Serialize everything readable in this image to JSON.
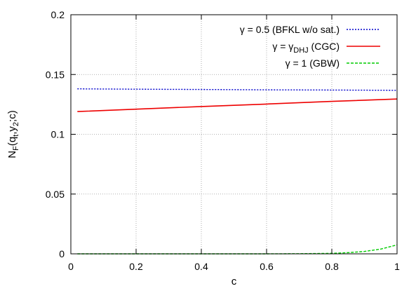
{
  "chart_data": {
    "type": "line",
    "title": "",
    "xlabel": "c",
    "ylabel": {
      "base": "N",
      "sub": "F",
      "rest_open": "(q",
      "sub2": "t",
      "rest_mid": ",y",
      "sub3": "2",
      "rest_close": ";c)"
    },
    "xlim": [
      0,
      1
    ],
    "ylim": [
      0,
      0.2
    ],
    "xticks": [
      {
        "value": 0,
        "label": "0"
      },
      {
        "value": 0.2,
        "label": "0.2"
      },
      {
        "value": 0.4,
        "label": "0.4"
      },
      {
        "value": 0.6,
        "label": "0.6"
      },
      {
        "value": 0.8,
        "label": "0.8"
      },
      {
        "value": 1,
        "label": "1"
      }
    ],
    "yticks": [
      {
        "value": 0,
        "label": "0"
      },
      {
        "value": 0.05,
        "label": "0.05"
      },
      {
        "value": 0.1,
        "label": "0.1"
      },
      {
        "value": 0.15,
        "label": "0.15"
      },
      {
        "value": 0.2,
        "label": "0.2"
      }
    ],
    "grid": true,
    "legend_position": "top-right",
    "series": [
      {
        "name": "γ = 0.5 (BFKL w/o sat.)",
        "legend": {
          "pre": "γ = 0.5 (BFKL w/o sat.)",
          "sub": "",
          "post": ""
        },
        "color": "#0000cc",
        "style": "dotted",
        "x": [
          0.02,
          0.2,
          0.4,
          0.6,
          0.8,
          1.0
        ],
        "y": [
          0.138,
          0.1377,
          0.1375,
          0.1372,
          0.137,
          0.1368
        ]
      },
      {
        "name": "γ = γDHJ (CGC)",
        "legend": {
          "pre": "γ = γ",
          "sub": "DHJ",
          "post": " (CGC)"
        },
        "color": "#ee0000",
        "style": "solid",
        "x": [
          0.02,
          0.2,
          0.4,
          0.6,
          0.8,
          1.0
        ],
        "y": [
          0.119,
          0.121,
          0.1232,
          0.1253,
          0.1275,
          0.1295
        ]
      },
      {
        "name": "γ = 1 (GBW)",
        "legend": {
          "pre": "γ = 1 (GBW)",
          "sub": "",
          "post": ""
        },
        "color": "#00cc00",
        "style": "dashed",
        "x": [
          0.02,
          0.2,
          0.4,
          0.6,
          0.7,
          0.8,
          0.85,
          0.9,
          0.95,
          1.0
        ],
        "y": [
          0.0,
          0.0,
          0.0,
          0.0,
          0.0001,
          0.0004,
          0.001,
          0.002,
          0.004,
          0.0075
        ]
      }
    ]
  }
}
